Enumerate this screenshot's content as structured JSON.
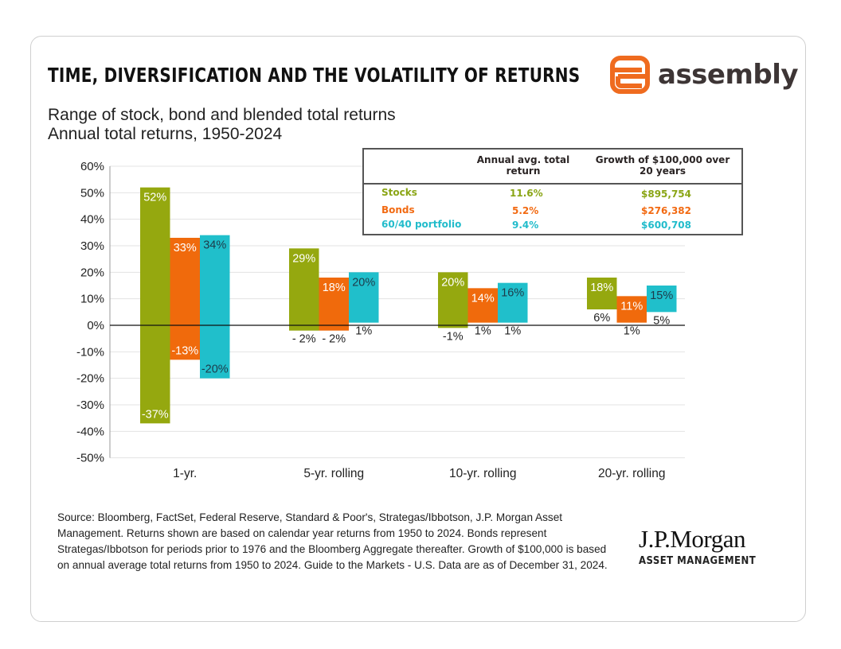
{
  "title": "TIME, DIVERSIFICATION AND THE VOLATILITY OF RETURNS",
  "subtitle_line1": "Range of stock, bond and blended total returns",
  "subtitle_line2": "Annual total returns, 1950-2024",
  "logo": {
    "text": "assembly",
    "color": "#ef6b1f"
  },
  "table": {
    "header_avg": "Annual avg. total return",
    "header_growth_line1": "Growth of $100,000 over",
    "header_growth_line2": "20 years",
    "rows": [
      {
        "label": "Stocks",
        "avg": "11.6%",
        "growth": "$895,754",
        "color": "#8aa515"
      },
      {
        "label": "Bonds",
        "avg": "5.2%",
        "growth": "$276,382",
        "color": "#f26a12"
      },
      {
        "label": "60/40 portfolio",
        "avg": "9.4%",
        "growth": "$600,708",
        "color": "#22bccb"
      }
    ]
  },
  "chart_data": {
    "type": "bar",
    "subtype": "floating range bars",
    "categories": [
      "1-yr.",
      "5-yr. rolling",
      "10-yr. rolling",
      "20-yr. rolling"
    ],
    "ylim": [
      -50,
      60
    ],
    "yticks": [
      "60%",
      "50%",
      "40%",
      "30%",
      "20%",
      "10%",
      "0%",
      "-10%",
      "-20%",
      "-30%",
      "-40%",
      "-50%"
    ],
    "ytick_values": [
      60,
      50,
      40,
      30,
      20,
      10,
      0,
      -10,
      -20,
      -30,
      -40,
      -50
    ],
    "grid": true,
    "series": [
      {
        "name": "Stocks",
        "color": "#95a80f",
        "high": [
          52,
          29,
          20,
          18
        ],
        "low": [
          -37,
          -2,
          -1,
          6
        ],
        "high_labels": [
          "52%",
          "29%",
          "20%",
          "18%"
        ],
        "low_labels": [
          "-37%",
          "- 2%",
          "-1%",
          "6%"
        ]
      },
      {
        "name": "Bonds",
        "color": "#f06a0c",
        "high": [
          33,
          18,
          14,
          11
        ],
        "low": [
          -13,
          -2,
          1,
          1
        ],
        "high_labels": [
          "33%",
          "18%",
          "14%",
          "11%"
        ],
        "low_labels": [
          "-13%",
          "- 2%",
          "1%",
          "1%"
        ]
      },
      {
        "name": "60/40 portfolio",
        "color": "#20bfcb",
        "high": [
          34,
          20,
          16,
          15
        ],
        "low": [
          -20,
          1,
          1,
          5
        ],
        "high_labels": [
          "34%",
          "20%",
          "16%",
          "15%"
        ],
        "low_labels": [
          "-20%",
          "1%",
          "1%",
          "5%"
        ]
      }
    ]
  },
  "source": "Source: Bloomberg, FactSet, Federal Reserve, Standard & Poor's, Strategas/Ibbotson, J.P. Morgan Asset Management. Returns shown are based on calendar year returns from 1950 to 2024. Bonds represent Strategas/Ibbotson for periods prior to 1976 and the Bloomberg Aggregate thereafter. Growth of $100,000 is based on annual average total returns from 1950 to 2024. Guide to the Markets - U.S. Data are as of December 31, 2024.",
  "jpm": {
    "name": "J.P.Morgan",
    "sub": "ASSET MANAGEMENT"
  }
}
